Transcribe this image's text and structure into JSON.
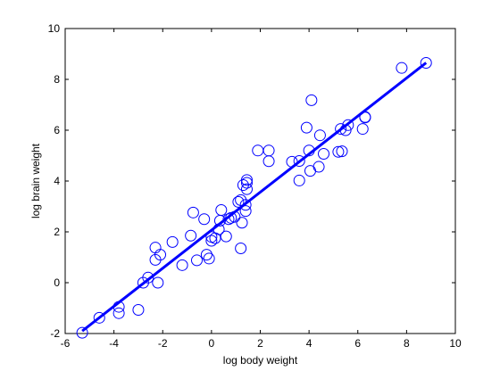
{
  "chart_data": {
    "type": "scatter",
    "title": "",
    "xlabel": "log body weight",
    "ylabel": "log brain weight",
    "xlim": [
      -6,
      10
    ],
    "ylim": [
      -2,
      10
    ],
    "xticks": [
      "-6",
      "-4",
      "-2",
      "0",
      "2",
      "4",
      "6",
      "8",
      "10"
    ],
    "yticks": [
      "-2",
      "0",
      "2",
      "4",
      "6",
      "8",
      "10"
    ],
    "grid": false,
    "legend": "none",
    "marker_color": "#0000ff",
    "fit_color": "#0000ff",
    "series": [
      {
        "points": [
          [
            -5.3,
            -1.97
          ],
          [
            -4.6,
            -1.38
          ],
          [
            -3.8,
            -1.2
          ],
          [
            -3.8,
            -0.95
          ],
          [
            -3.0,
            -1.07
          ],
          [
            -2.8,
            0.0
          ],
          [
            -2.6,
            0.2
          ],
          [
            -2.2,
            0.0
          ],
          [
            -2.3,
            0.9
          ],
          [
            -2.3,
            1.38
          ],
          [
            -2.1,
            1.1
          ],
          [
            -1.6,
            1.6
          ],
          [
            -1.2,
            0.69
          ],
          [
            -0.85,
            1.85
          ],
          [
            -0.75,
            2.76
          ],
          [
            -0.6,
            0.88
          ],
          [
            -0.3,
            2.5
          ],
          [
            -0.2,
            1.1
          ],
          [
            -0.1,
            0.95
          ],
          [
            0.0,
            1.65
          ],
          [
            0.0,
            1.8
          ],
          [
            0.15,
            1.75
          ],
          [
            0.3,
            2.1
          ],
          [
            0.35,
            2.44
          ],
          [
            0.4,
            2.86
          ],
          [
            0.6,
            1.82
          ],
          [
            0.7,
            2.5
          ],
          [
            0.8,
            2.55
          ],
          [
            0.95,
            2.59
          ],
          [
            1.1,
            3.18
          ],
          [
            1.2,
            3.25
          ],
          [
            1.2,
            1.35
          ],
          [
            1.25,
            2.36
          ],
          [
            1.3,
            3.84
          ],
          [
            1.4,
            2.82
          ],
          [
            1.4,
            3.06
          ],
          [
            1.45,
            3.68
          ],
          [
            1.45,
            3.93
          ],
          [
            1.45,
            4.04
          ],
          [
            1.9,
            5.2
          ],
          [
            2.35,
            4.78
          ],
          [
            2.35,
            5.2
          ],
          [
            3.3,
            4.76
          ],
          [
            3.6,
            4.02
          ],
          [
            3.6,
            4.79
          ],
          [
            3.9,
            6.1
          ],
          [
            4.0,
            5.2
          ],
          [
            4.05,
            4.4
          ],
          [
            4.1,
            7.18
          ],
          [
            4.4,
            4.56
          ],
          [
            4.45,
            5.8
          ],
          [
            4.6,
            5.07
          ],
          [
            5.2,
            5.15
          ],
          [
            5.3,
            6.05
          ],
          [
            5.35,
            5.17
          ],
          [
            5.5,
            6.0
          ],
          [
            5.6,
            6.2
          ],
          [
            6.2,
            6.05
          ],
          [
            6.3,
            6.5
          ],
          [
            6.3,
            6.52
          ],
          [
            7.8,
            8.45
          ],
          [
            8.8,
            8.65
          ]
        ]
      }
    ],
    "fit_line": {
      "x": [
        -5.3,
        8.8
      ],
      "y": [
        -1.9,
        8.65
      ]
    }
  }
}
